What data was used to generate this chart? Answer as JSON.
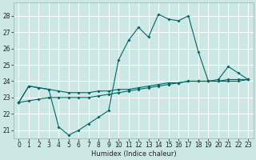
{
  "xlabel": "Humidex (Indice chaleur)",
  "background_color": "#cce8e4",
  "grid_color": "#ffffff",
  "line_color": "#006666",
  "xlim": [
    -0.5,
    23.5
  ],
  "ylim": [
    20.5,
    28.8
  ],
  "yticks": [
    21,
    22,
    23,
    24,
    25,
    26,
    27,
    28
  ],
  "xticks": [
    0,
    1,
    2,
    3,
    4,
    5,
    6,
    7,
    8,
    9,
    10,
    11,
    12,
    13,
    14,
    15,
    16,
    17,
    18,
    19,
    20,
    21,
    22,
    23
  ],
  "line1_x": [
    0,
    1,
    2,
    3,
    4,
    5,
    6,
    7,
    8,
    9,
    10,
    11,
    12,
    13,
    14,
    15,
    16,
    17,
    18,
    19,
    20,
    21,
    22,
    23
  ],
  "line1_y": [
    22.7,
    23.7,
    23.6,
    23.5,
    21.2,
    20.7,
    21.0,
    21.4,
    21.8,
    22.2,
    25.3,
    26.5,
    27.3,
    26.7,
    28.1,
    27.8,
    27.7,
    28.0,
    25.8,
    24.0,
    24.1,
    24.9,
    24.5,
    24.1
  ],
  "line2_x": [
    0,
    1,
    2,
    3,
    4,
    5,
    6,
    7,
    8,
    9,
    10,
    11,
    12,
    13,
    14,
    15,
    16,
    17,
    18,
    19,
    20,
    21,
    22,
    23
  ],
  "line2_y": [
    22.7,
    23.7,
    23.6,
    23.5,
    23.4,
    23.3,
    23.3,
    23.3,
    23.4,
    23.4,
    23.5,
    23.5,
    23.6,
    23.7,
    23.8,
    23.9,
    23.9,
    24.0,
    24.0,
    24.0,
    24.0,
    24.1,
    24.1,
    24.1
  ],
  "line3_x": [
    0,
    1,
    2,
    3,
    4,
    5,
    6,
    7,
    8,
    9,
    10,
    11,
    12,
    13,
    14,
    15,
    16,
    17,
    18,
    19,
    20,
    21,
    22,
    23
  ],
  "line3_y": [
    22.7,
    22.8,
    22.9,
    23.0,
    23.0,
    23.0,
    23.0,
    23.0,
    23.1,
    23.2,
    23.3,
    23.4,
    23.5,
    23.6,
    23.7,
    23.8,
    23.9,
    24.0,
    24.0,
    24.0,
    24.0,
    24.0,
    24.0,
    24.1
  ],
  "markersize": 2.0,
  "linewidth": 0.8,
  "tick_labelsize": 5.5,
  "xlabel_fontsize": 6.0
}
